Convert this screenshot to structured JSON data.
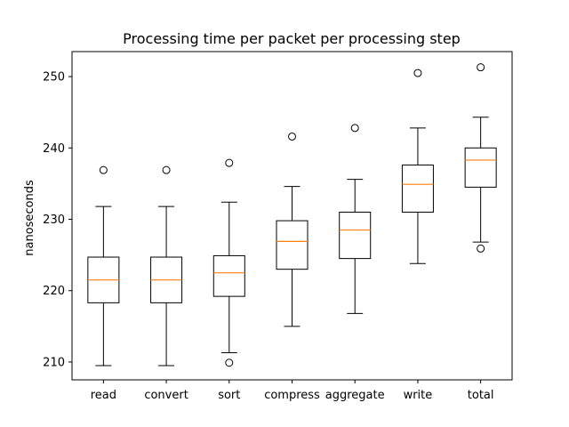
{
  "chart_data": {
    "type": "box",
    "title": "Processing time per packet per processing step",
    "xlabel": "",
    "ylabel": "nanoseconds",
    "ylim": [
      207.5,
      253.5
    ],
    "yticks": [
      210,
      220,
      230,
      240,
      250
    ],
    "grid": false,
    "categories": [
      "read",
      "convert",
      "sort",
      "compress",
      "aggregate",
      "write",
      "total"
    ],
    "boxes": [
      {
        "category": "read",
        "whisker_low": 209.5,
        "q1": 218.3,
        "median": 221.5,
        "q3": 224.7,
        "whisker_high": 231.8,
        "outliers": [
          236.9
        ]
      },
      {
        "category": "convert",
        "whisker_low": 209.5,
        "q1": 218.3,
        "median": 221.5,
        "q3": 224.7,
        "whisker_high": 231.8,
        "outliers": [
          236.9
        ]
      },
      {
        "category": "sort",
        "whisker_low": 211.3,
        "q1": 219.2,
        "median": 222.5,
        "q3": 224.9,
        "whisker_high": 232.4,
        "outliers": [
          209.9,
          237.9
        ]
      },
      {
        "category": "compress",
        "whisker_low": 215.0,
        "q1": 223.0,
        "median": 226.9,
        "q3": 229.8,
        "whisker_high": 234.6,
        "outliers": [
          241.6
        ]
      },
      {
        "category": "aggregate",
        "whisker_low": 216.8,
        "q1": 224.5,
        "median": 228.5,
        "q3": 231.0,
        "whisker_high": 235.6,
        "outliers": [
          242.8
        ]
      },
      {
        "category": "write",
        "whisker_low": 223.8,
        "q1": 231.0,
        "median": 234.9,
        "q3": 237.6,
        "whisker_high": 242.8,
        "outliers": [
          250.5
        ]
      },
      {
        "category": "total",
        "whisker_low": 226.8,
        "q1": 234.5,
        "median": 238.3,
        "q3": 240.0,
        "whisker_high": 244.3,
        "outliers": [
          225.9,
          251.3
        ]
      }
    ],
    "colors": {
      "box": "#000000",
      "median": "#ff7f0e",
      "axis": "#000000",
      "background": "#ffffff"
    }
  }
}
